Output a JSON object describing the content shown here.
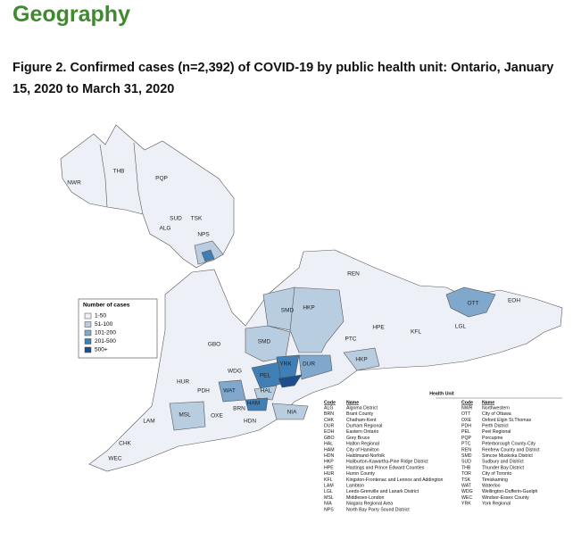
{
  "header": {
    "title": "Geography"
  },
  "figure": {
    "caption": "Figure 2. Confirmed cases (n=2,392) of COVID-19 by public health unit: Ontario, January 15, 2020 to March 31, 2020"
  },
  "legend": {
    "title": "Number of cases",
    "items": [
      {
        "label": "1-50",
        "color": "#eef0f8"
      },
      {
        "label": "51-100",
        "color": "#b9cde0"
      },
      {
        "label": "101-200",
        "color": "#7fa8cc"
      },
      {
        "label": "201-500",
        "color": "#3f7fb5"
      },
      {
        "label": "500+",
        "color": "#1b4f8c"
      }
    ]
  },
  "map": {
    "labels": [
      "NWR",
      "THB",
      "PQP",
      "SUD",
      "TSK",
      "ALG",
      "NPS",
      "REN",
      "OTT",
      "EOH",
      "SMD",
      "HKP",
      "GBO",
      "SMD",
      "PTC",
      "HPE",
      "KFL",
      "LGL",
      "HKP",
      "DUR",
      "YRK",
      "PEL",
      "WDG",
      "HUR",
      "PDH",
      "WAT",
      "HAL",
      "HAM",
      "BRN",
      "NIA",
      "MSL",
      "OXE",
      "HDN",
      "LAM",
      "CHK",
      "WEC"
    ]
  },
  "table": {
    "title": "Health Unit",
    "columns": [
      "Code",
      "Name"
    ],
    "rows": [
      [
        "ALG",
        "Algoma District"
      ],
      [
        "BRN",
        "Brant County"
      ],
      [
        "CHK",
        "Chatham-Kent"
      ],
      [
        "DUR",
        "Durham Regional"
      ],
      [
        "EOH",
        "Eastern Ontario"
      ],
      [
        "GBO",
        "Grey Bruce"
      ],
      [
        "HAL",
        "Halton Regional"
      ],
      [
        "HAM",
        "City of Hamilton"
      ],
      [
        "HDN",
        "Haldimand-Norfolk"
      ],
      [
        "HKP",
        "Haliburton-Kawartha-Pine Ridge District"
      ],
      [
        "HPE",
        "Hastings and Prince Edward Counties"
      ],
      [
        "HUR",
        "Huron County"
      ],
      [
        "KFL",
        "Kingston-Frontenac and Lennox and Addington"
      ],
      [
        "LAM",
        "Lambton"
      ],
      [
        "LGL",
        "Leeds-Grenville and Lanark District"
      ],
      [
        "MSL",
        "Middlesex-London"
      ],
      [
        "NIA",
        "Niagara Regional Area"
      ],
      [
        "NPS",
        "North Bay Parry Sound District"
      ],
      [
        "NWR",
        "Northwestern"
      ],
      [
        "OTT",
        "City of Ottawa"
      ],
      [
        "OXE",
        "Oxford Elgin St.Thomas"
      ],
      [
        "PDH",
        "Perth District"
      ],
      [
        "PEL",
        "Peel Regional"
      ],
      [
        "PQP",
        "Porcupine"
      ],
      [
        "PTC",
        "Peterborough County-City"
      ],
      [
        "REN",
        "Renfrew County and District"
      ],
      [
        "SMD",
        "Simcoe Muskoka District"
      ],
      [
        "SUD",
        "Sudbury and District"
      ],
      [
        "THB",
        "Thunder Bay District"
      ],
      [
        "TOR",
        "City of Toronto"
      ],
      [
        "TSK",
        "Timiskaming"
      ],
      [
        "WAT",
        "Waterloo"
      ],
      [
        "WDG",
        "Wellington-Dufferin-Guelph"
      ],
      [
        "WEC",
        "Windsor-Essex County"
      ],
      [
        "YRK",
        "York Regional"
      ]
    ]
  }
}
